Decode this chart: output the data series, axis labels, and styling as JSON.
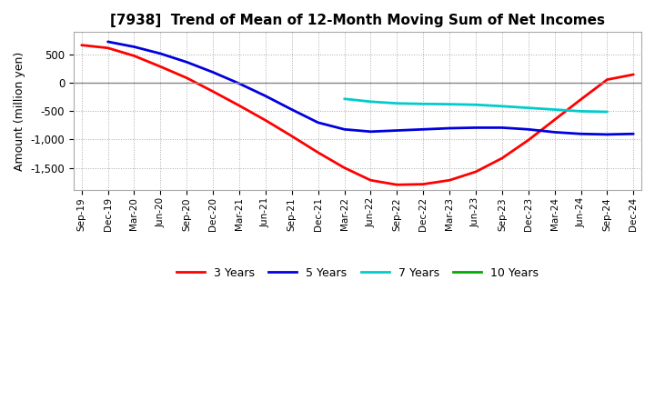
{
  "title": "[7938]  Trend of Mean of 12-Month Moving Sum of Net Incomes",
  "ylabel": "Amount (million yen)",
  "background_color": "#ffffff",
  "grid_color": "#aaaaaa",
  "ylim": [
    -1900,
    900
  ],
  "yticks": [
    -1500,
    -1000,
    -500,
    0,
    500
  ],
  "x_labels": [
    "Sep-19",
    "Dec-19",
    "Mar-20",
    "Jun-20",
    "Sep-20",
    "Dec-20",
    "Mar-21",
    "Jun-21",
    "Sep-21",
    "Dec-21",
    "Mar-22",
    "Jun-22",
    "Sep-22",
    "Dec-22",
    "Mar-23",
    "Jun-23",
    "Sep-23",
    "Dec-23",
    "Mar-24",
    "Jun-24",
    "Sep-24",
    "Dec-24"
  ],
  "series": {
    "3years": {
      "color": "#ff0000",
      "label": "3 Years",
      "values": [
        670,
        620,
        480,
        290,
        90,
        -150,
        -400,
        -660,
        -940,
        -1230,
        -1500,
        -1720,
        -1800,
        -1790,
        -1720,
        -1570,
        -1330,
        -1010,
        -650,
        -290,
        60,
        150
      ]
    },
    "5years": {
      "color": "#0000dd",
      "label": "5 Years",
      "values": [
        null,
        730,
        640,
        520,
        370,
        190,
        -10,
        -230,
        -470,
        -700,
        -820,
        -860,
        -840,
        -820,
        -800,
        -790,
        -790,
        -820,
        -870,
        -900,
        -910,
        -900
      ]
    },
    "7years": {
      "color": "#00cccc",
      "label": "7 Years",
      "values": [
        null,
        null,
        null,
        null,
        null,
        null,
        null,
        null,
        null,
        null,
        -280,
        -330,
        -360,
        -370,
        -375,
        -385,
        -410,
        -440,
        -470,
        -500,
        -510,
        null
      ]
    },
    "10years": {
      "color": "#00aa00",
      "label": "10 Years",
      "values": [
        null,
        null,
        null,
        null,
        null,
        null,
        null,
        null,
        null,
        null,
        null,
        null,
        null,
        null,
        null,
        null,
        null,
        null,
        null,
        null,
        null,
        null
      ]
    }
  },
  "legend_labels": [
    "3 Years",
    "5 Years",
    "7 Years",
    "10 Years"
  ],
  "legend_colors": [
    "#ff0000",
    "#0000dd",
    "#00cccc",
    "#00aa00"
  ]
}
